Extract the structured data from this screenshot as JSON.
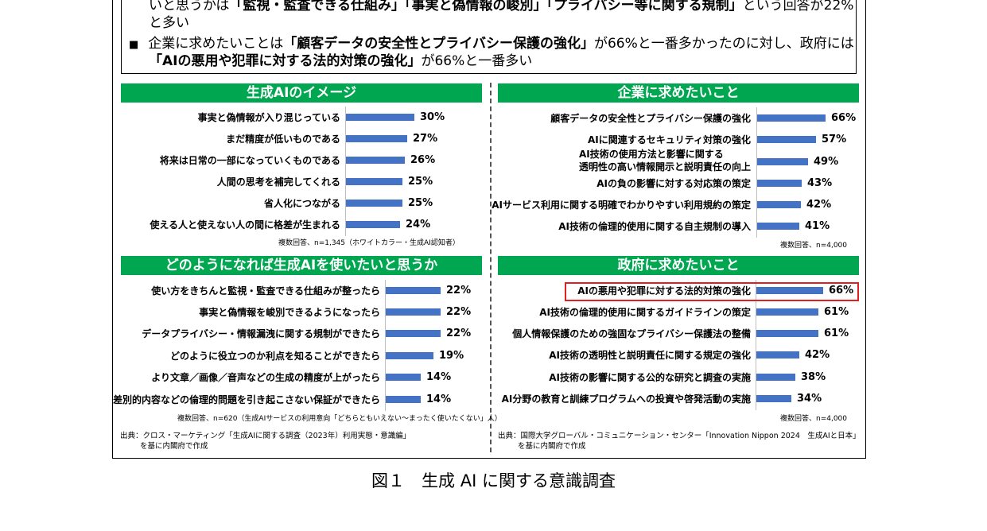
{
  "summary": {
    "line1_a": "いと思うかは",
    "line1_b": "「監視・監査できる仕組み」「事実と偽情報の峻別」「プライバシー等に関する規制」",
    "line1_c": "という回答が22%",
    "line2": "と多い",
    "bullet": "■",
    "line3_a": "企業に求めたいことは",
    "line3_b": "「顧客データの安全性とプライバシー保護の強化」",
    "line3_c": "が66%と一番多かったのに対し、政府には",
    "line4_a": "「AIの悪用や犯罪に対する法的対策の強化」",
    "line4_b": "が66%と一番多い"
  },
  "chart_data": [
    {
      "type": "bar",
      "title": "生成AIのイメージ",
      "categories": [
        "事実と偽情報が入り混じっている",
        "まだ精度が低いものである",
        "将来は日常の一部になっていくものである",
        "人間の思考を補完してくれる",
        "省人化につながる",
        "使える人と使えない人の間に格差が生まれる"
      ],
      "values": [
        30,
        27,
        26,
        25,
        25,
        24
      ],
      "labels": [
        "30%",
        "27%",
        "26%",
        "25%",
        "25%",
        "24%"
      ],
      "note": "複数回答、n=1,345（ホワイトカラー・生成AI認知者）"
    },
    {
      "type": "bar",
      "title": "企業に求めたいこと",
      "categories": [
        "顧客データの安全性とプライバシー保護の強化",
        "AIに関連するセキュリティ対策の強化",
        "AI技術の使用方法と影響に関する|透明性の高い情報開示と説明責任の向上",
        "AIの負の影響に対する対応策の策定",
        "AIサービス利用に関する明確でわかりやすい利用規約の策定",
        "AI技術の倫理的使用に関する自主規制の導入"
      ],
      "values": [
        66,
        57,
        49,
        43,
        42,
        41
      ],
      "labels": [
        "66%",
        "57%",
        "49%",
        "43%",
        "42%",
        "41%"
      ],
      "note": "複数回答、n=4,000"
    },
    {
      "type": "bar",
      "title": "どのようになれば生成AIを使いたいと思うか",
      "categories": [
        "使い方をきちんと監視・監査できる仕組みが整ったら",
        "事実と偽情報を峻別できるようになったら",
        "データプライバシー・情報漏洩に関する規制ができたら",
        "どのように役立つのか利点を知ることができたら",
        "より文章／画像／音声などの生成の精度が上がったら",
        "差別的内容などの倫理的問題を引き起こさない保証ができたら"
      ],
      "values": [
        22,
        22,
        22,
        19,
        14,
        14
      ],
      "labels": [
        "22%",
        "22%",
        "22%",
        "19%",
        "14%",
        "14%"
      ],
      "note": "複数回答、n=620（生成AIサービスの利用意向「どちらともいえない～まったく使いたくない」人）"
    },
    {
      "type": "bar",
      "title": "政府に求めたいこと",
      "categories": [
        "AIの悪用や犯罪に対する法的対策の強化",
        "AI技術の倫理的使用に関するガイドラインの策定",
        "個人情報保護のための強固なプライバシー保護法の整備",
        "AI技術の透明性と説明責任に関する規定の強化",
        "AI技術の影響に関する公的な研究と調査の実施",
        "AI分野の教育と訓練プログラムへの投資や啓発活動の実施"
      ],
      "values": [
        66,
        61,
        61,
        42,
        38,
        34
      ],
      "labels": [
        "66%",
        "61%",
        "61%",
        "42%",
        "38%",
        "34%"
      ],
      "note": "複数回答、n=4,000"
    }
  ],
  "sources": {
    "left_1": "出典：クロス・マーケティング「生成AIに関する調査（2023年）利用実態・意識編」",
    "left_2": "を基に内閣府で作成",
    "right_1": "出典：国際大学グローバル・コミュニケーション・センター「Innovation Nippon 2024　生成AIと日本」",
    "right_2": "を基に内閣府で作成"
  },
  "caption": "図１　生成 AI に関する意識調査",
  "colors": {
    "header": "#00a650",
    "bar": "#4472c4",
    "highlight": "#e02020"
  }
}
